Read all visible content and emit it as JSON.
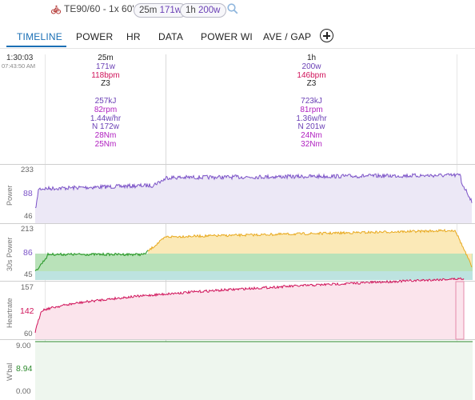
{
  "header": {
    "ride_title": "TE90/60 - 1x 60'",
    "title_suffix": "~",
    "chips": [
      {
        "duration": "25m",
        "power": "171w"
      },
      {
        "duration": "1h",
        "power": "200w"
      }
    ],
    "icons": {
      "ride": "cycling-icon",
      "edit": "edit-icon",
      "search": "search-icon"
    }
  },
  "tabs": [
    "TIMELINE",
    "POWER",
    "HR",
    "DATA",
    "POWER WI",
    "AVE / GAP"
  ],
  "active_tab": "TIMELINE",
  "cursor": {
    "time": "1:30:03",
    "clock": "07:43:50 AM"
  },
  "summaries": [
    {
      "duration": "25m",
      "power": "171w",
      "hr": "118bpm",
      "zone": "Z3",
      "energy": "257kJ",
      "cadence": "82rpm",
      "efficiency": "1.44w/hr",
      "np": "N 172w",
      "torque1": "28Nm",
      "torque2": "25Nm"
    },
    {
      "duration": "1h",
      "power": "200w",
      "hr": "146bpm",
      "zone": "Z3",
      "energy": "723kJ",
      "cadence": "81rpm",
      "efficiency": "1.36w/hr",
      "np": "N 201w",
      "torque1": "24Nm",
      "torque2": "32Nm"
    }
  ],
  "panels": [
    {
      "title": "Power",
      "max": "233",
      "avg": "88",
      "min": "46",
      "color": "#7b52c7"
    },
    {
      "title": "30s Power",
      "max": "213",
      "avg": "86",
      "min": "45",
      "color": "#e8a91e"
    },
    {
      "title": "Heartrate",
      "max": "157",
      "avg": "142",
      "min": "60",
      "color": "#d0135a"
    },
    {
      "title": "W'bal",
      "max": "9.00",
      "avg": "8.94",
      "min": "0.00",
      "color": "#2e8b2e"
    }
  ],
  "colors": {
    "accent": "#1a6fb5",
    "power": "#7b52c7",
    "power30": "#e8a91e",
    "power30_early": "#2e9b2e",
    "heartrate": "#d0135a",
    "wbal": "#2e8b2e"
  }
}
